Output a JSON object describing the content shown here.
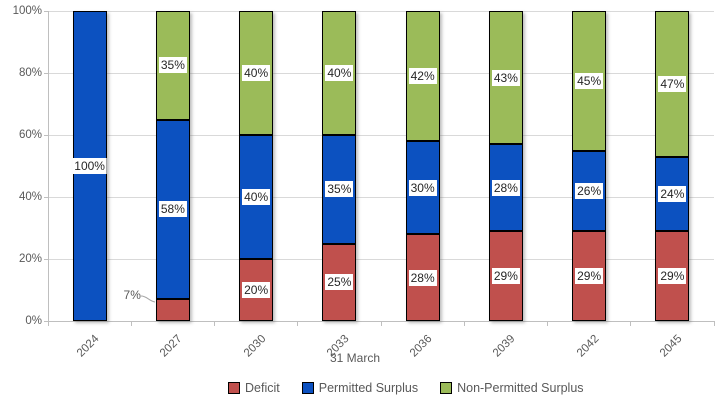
{
  "chart_data": {
    "type": "bar",
    "stacked": true,
    "percent_stacked": true,
    "title": "",
    "xlabel": "31 March",
    "ylabel": "",
    "categories": [
      "2024",
      "2027",
      "2030",
      "2033",
      "2036",
      "2039",
      "2042",
      "2045"
    ],
    "series": [
      {
        "name": "Deficit",
        "color": "#C0504D",
        "values": [
          0,
          7,
          20,
          25,
          28,
          29,
          29,
          29
        ]
      },
      {
        "name": "Permitted Surplus",
        "color": "#0C51C0",
        "values": [
          100,
          58,
          40,
          35,
          30,
          28,
          26,
          24
        ]
      },
      {
        "name": "Non-Permitted Surplus",
        "color": "#9BBB59",
        "values": [
          0,
          35,
          40,
          40,
          42,
          43,
          45,
          47
        ]
      }
    ],
    "data_labels": [
      "100%",
      "7%",
      "58%",
      "35%",
      "20%",
      "40%",
      "40%",
      "25%",
      "35%",
      "40%",
      "28%",
      "30%",
      "42%",
      "29%",
      "28%",
      "43%",
      "29%",
      "26%",
      "45%",
      "29%",
      "24%",
      "47%"
    ],
    "label_suffix": "%",
    "yticks": [
      "0%",
      "20%",
      "40%",
      "60%",
      "80%",
      "100%"
    ],
    "ytick_values": [
      0,
      20,
      40,
      60,
      80,
      100
    ],
    "ylim": [
      0,
      100
    ],
    "grid": true,
    "legend_position": "bottom",
    "colors": {
      "grid": "#d9d9d9",
      "axis": "#bfbfbf",
      "axis_text": "#595959",
      "label_text": "#262626",
      "segment_border": "#000000",
      "label_background": "#ffffff"
    }
  }
}
